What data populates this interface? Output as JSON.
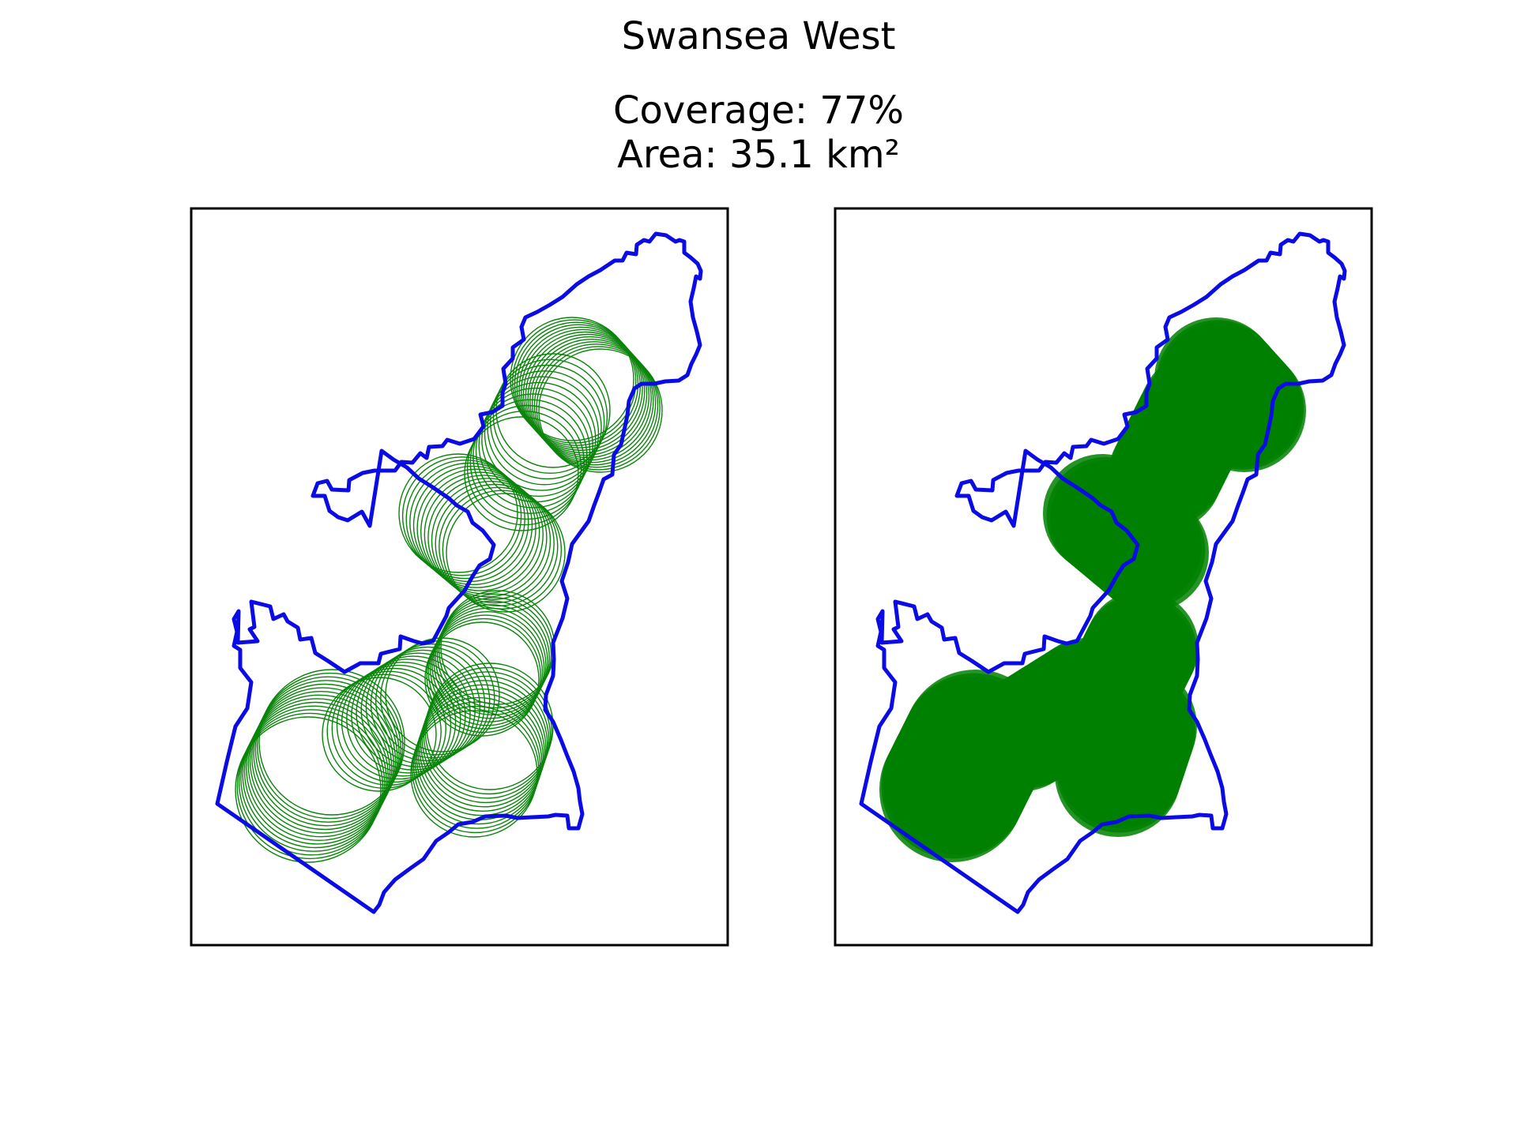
{
  "figure": {
    "title": "Swansea West",
    "coverage_label": "Coverage: 77%",
    "area_label": "Area: 35.1 km²"
  },
  "colors": {
    "boundary": "#0b0be6",
    "coverage_fill": "#008000",
    "circle_stroke": "#0a840a",
    "frame": "#000000"
  },
  "chart_data": [
    {
      "type": "map",
      "title": "",
      "panel": "left",
      "style": "outline circles",
      "coverage_percent": 77,
      "area_km2": 35.1
    },
    {
      "type": "map",
      "title": "",
      "panel": "right",
      "style": "filled circles",
      "coverage_percent": 77,
      "area_km2": 35.1
    }
  ]
}
